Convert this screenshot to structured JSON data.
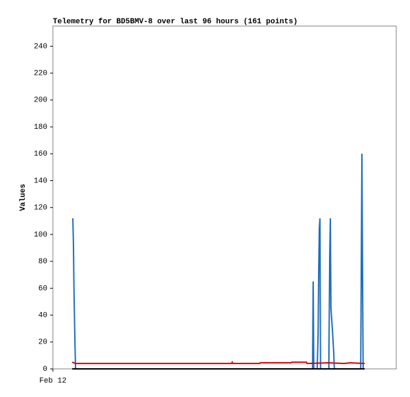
{
  "chart_data": {
    "type": "line",
    "title": "Telemetry for BD5BMV-8 over last 96 hours (161 points)",
    "ylabel": "Values",
    "xlim": [
      0,
      112
    ],
    "xticks": [
      {
        "value": 0,
        "label": "Feb 12"
      }
    ],
    "ylim": [
      0,
      255
    ],
    "yticks": [
      0,
      20,
      40,
      60,
      80,
      100,
      120,
      140,
      160,
      180,
      200,
      220,
      240
    ],
    "series": [
      {
        "color": "#1e6ebe",
        "x": [
          6.5,
          6.7,
          6.9,
          7.2,
          7.4,
          84.7,
          84.9,
          85.1,
          86.2,
          86.5,
          86.7,
          86.9,
          87.1,
          87.3,
          90.0,
          90.3,
          90.5,
          90.7,
          91.2,
          91.6,
          91.8,
          100.4,
          100.6,
          100.8,
          101.0,
          101.2
        ],
        "values": [
          112,
          94,
          56,
          19,
          0,
          0,
          65,
          0,
          0,
          25,
          72,
          104,
          112,
          0,
          0,
          84,
          112,
          45,
          28,
          12,
          0,
          0,
          80,
          160,
          72,
          0
        ]
      },
      {
        "color": "#e00000",
        "x": [
          6.3,
          7.4,
          58.2,
          58.5,
          58.7,
          67.4,
          67.6,
          77.7,
          77.9,
          82.7,
          82.9,
          90.0,
          95.0,
          97.0,
          101.7
        ],
        "values": [
          5,
          4,
          4,
          5,
          4,
          4,
          4.5,
          4.5,
          5,
          5,
          4,
          4.5,
          4,
          4.5,
          4
        ]
      },
      {
        "color": "#000000",
        "x": [
          6.3,
          101.7
        ],
        "values": [
          0,
          0
        ]
      }
    ]
  }
}
